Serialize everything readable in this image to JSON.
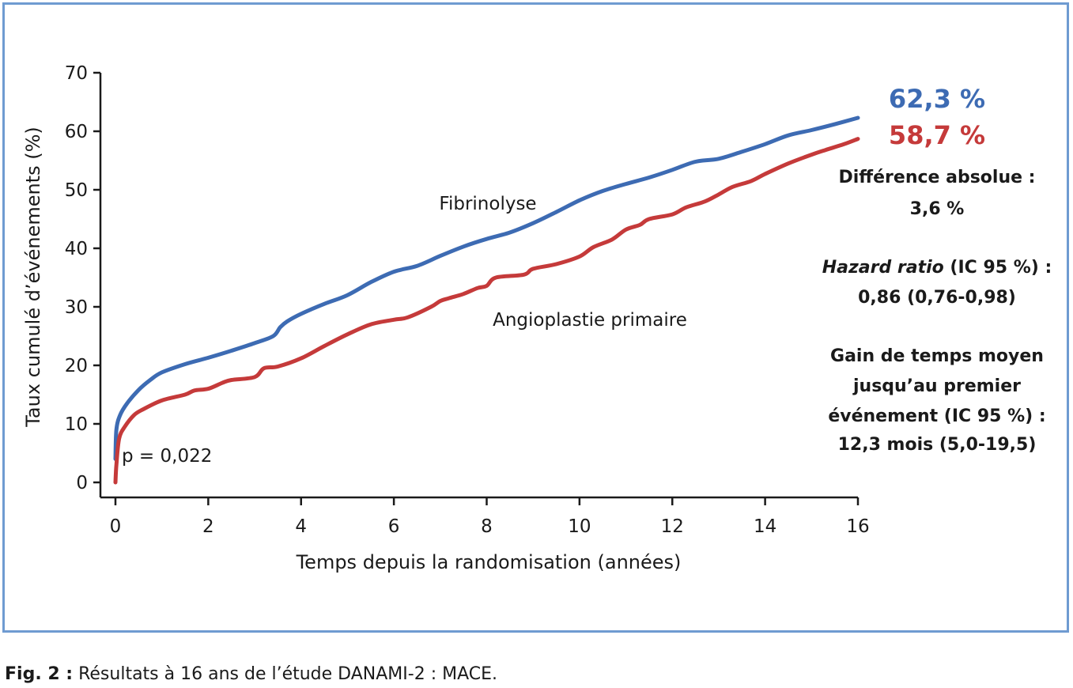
{
  "chart_data": {
    "type": "line",
    "xlabel": "Temps depuis la randomisation (années)",
    "ylabel": "Taux cumulé d’événements (%)",
    "xlim": [
      0,
      16
    ],
    "ylim": [
      0,
      70
    ],
    "x_ticks": [
      "0",
      "2",
      "4",
      "6",
      "8",
      "10",
      "12",
      "14",
      "16"
    ],
    "y_ticks": [
      "0",
      "10",
      "20",
      "30",
      "40",
      "50",
      "60",
      "70"
    ],
    "grid": false,
    "series": [
      {
        "name": "Fibrinolyse",
        "color": "#3d6bb3",
        "end_label": "62,3 %",
        "x": [
          0,
          0.02,
          0.1,
          0.25,
          0.5,
          0.75,
          1,
          1.5,
          2,
          2.5,
          3,
          3.4,
          3.55,
          3.7,
          4,
          4.5,
          5,
          5.5,
          6,
          6.5,
          7,
          7.5,
          8,
          8.5,
          9,
          9.5,
          10,
          10.5,
          11,
          11.5,
          12,
          12.5,
          13,
          13.5,
          14,
          14.5,
          15,
          15.5,
          16
        ],
        "values": [
          4,
          9,
          11.5,
          13.5,
          15.8,
          17.5,
          18.8,
          20.2,
          21.3,
          22.5,
          23.8,
          25,
          26.5,
          27.5,
          28.8,
          30.5,
          32,
          34.2,
          36,
          37,
          38.7,
          40.3,
          41.6,
          42.7,
          44.3,
          46.2,
          48.2,
          49.8,
          51,
          52.1,
          53.4,
          54.8,
          55.3,
          56.5,
          57.8,
          59.3,
          60.2,
          61.2,
          62.3
        ]
      },
      {
        "name": "Angioplastie primaire",
        "color": "#c53a3a",
        "end_label": "58,7 %",
        "x": [
          0,
          0.02,
          0.08,
          0.2,
          0.4,
          0.6,
          1,
          1.5,
          1.7,
          2,
          2.3,
          2.5,
          3,
          3.2,
          3.5,
          4,
          4.5,
          5,
          5.5,
          6,
          6.3,
          6.8,
          7,
          7.2,
          7.5,
          7.8,
          8,
          8.2,
          8.8,
          9,
          9.5,
          10,
          10.3,
          10.7,
          11,
          11.3,
          11.5,
          12,
          12.3,
          12.7,
          13,
          13.3,
          13.7,
          14,
          14.5,
          15,
          15.3,
          15.7,
          16
        ],
        "values": [
          0,
          3,
          7.5,
          9.5,
          11.5,
          12.5,
          14,
          15,
          15.7,
          16,
          17,
          17.5,
          18,
          19.5,
          19.8,
          21.2,
          23.3,
          25.3,
          27,
          27.8,
          28.2,
          30,
          31,
          31.5,
          32.2,
          33.2,
          33.6,
          35,
          35.5,
          36.5,
          37.3,
          38.6,
          40.2,
          41.5,
          43.2,
          44,
          45,
          45.8,
          47,
          48,
          49.2,
          50.5,
          51.5,
          52.7,
          54.5,
          56,
          56.8,
          57.8,
          58.7
        ]
      }
    ],
    "labels": {
      "series1": "Fibrinolyse",
      "series2": "Angioplastie primaire",
      "pvalue": "p = 0,022"
    }
  },
  "side": {
    "value1": "62,3 %",
    "value2": "58,7 %",
    "diff_label": "Différence absolue :",
    "diff_value": "3,6 %",
    "hr_label_italic": "Hazard ratio",
    "hr_label_rest": " (IC 95 %) :",
    "hr_value": "0,86 (0,76-0,98)",
    "gain_l1": "Gain de temps moyen",
    "gain_l2": "jusqu’au premier",
    "gain_l3": "événement (IC 95 %) :",
    "gain_l4": "12,3 mois (5,0-19,5)"
  },
  "caption": {
    "prefix": "Fig. 2 :",
    "text": " Résultats à 16 ans de l’étude DANAMI-2 : MACE."
  },
  "colors": {
    "frame": "#6f9bd1",
    "blue": "#3d6bb3",
    "red": "#c53a3a"
  }
}
